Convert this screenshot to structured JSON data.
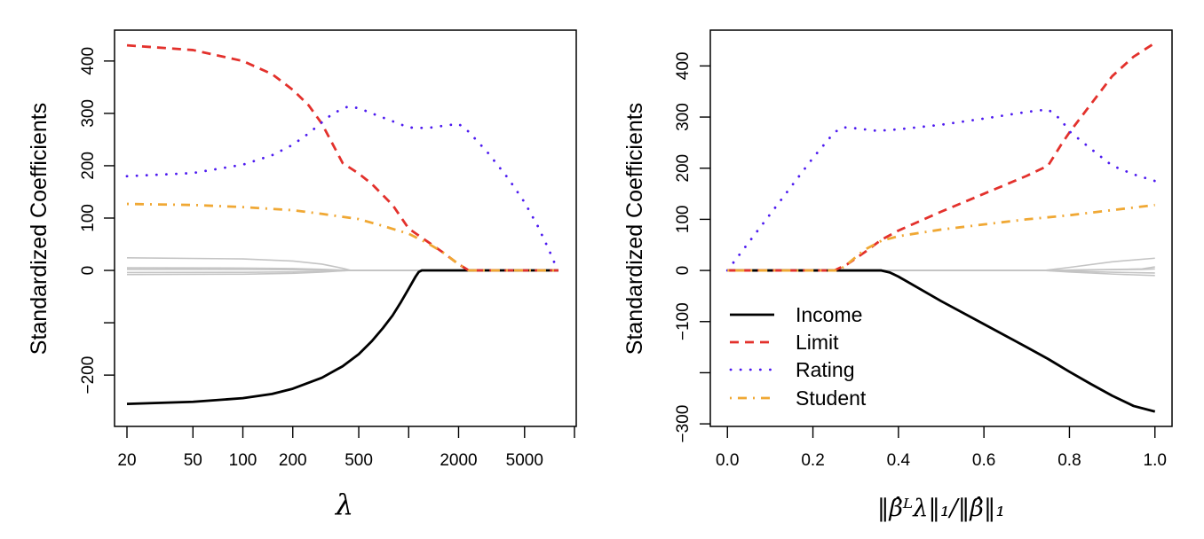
{
  "colors": {
    "Income": "#000000",
    "Limit": "#e3312c",
    "Rating": "#4d1af0",
    "Student": "#f0a834",
    "other": "#c4c4c4"
  },
  "chart_data": [
    {
      "type": "line",
      "panel": "left",
      "xlabel": "λ",
      "ylabel": "Standardized Coefficients",
      "xscale": "log",
      "xlim": [
        20,
        10000
      ],
      "ylim": [
        -298,
        459
      ],
      "xticks": [
        20,
        50,
        100,
        200,
        500,
        1000,
        2000,
        5000,
        10000
      ],
      "xtick_labels": [
        "20",
        "50",
        "100",
        "200",
        "500",
        "",
        "2000",
        "5000",
        ""
      ],
      "yticks": [
        -200,
        -100,
        0,
        100,
        200,
        300,
        400
      ],
      "ytick_labels": [
        "−200",
        "",
        "0",
        "100",
        "200",
        "300",
        "400"
      ],
      "grid": false,
      "series": [
        {
          "name": "Income",
          "style": "solid",
          "x": [
            20,
            50,
            100,
            150,
            200,
            300,
            400,
            500,
            600,
            700,
            800,
            900,
            1000,
            1100,
            1150,
            1200,
            8000
          ],
          "y": [
            -255,
            -251,
            -244,
            -236,
            -226,
            -205,
            -183,
            -160,
            -135,
            -110,
            -86,
            -60,
            -35,
            -12,
            -3,
            0,
            0
          ]
        },
        {
          "name": "Limit",
          "style": "dashed",
          "x": [
            20,
            50,
            100,
            150,
            200,
            250,
            300,
            400,
            500,
            600,
            800,
            1000,
            1300,
            1600,
            2000,
            2300,
            8000
          ],
          "y": [
            430,
            421,
            400,
            375,
            345,
            315,
            280,
            205,
            185,
            165,
            125,
            80,
            55,
            35,
            12,
            0,
            0
          ]
        },
        {
          "name": "Rating",
          "style": "dotted",
          "x": [
            20,
            50,
            100,
            150,
            200,
            250,
            300,
            350,
            430,
            500,
            600,
            800,
            1000,
            1300,
            1600,
            2000,
            2300,
            3000,
            4000,
            5000,
            6000,
            7000,
            7800,
            8000
          ],
          "y": [
            180,
            186,
            202,
            220,
            240,
            262,
            283,
            300,
            313,
            310,
            300,
            285,
            273,
            272,
            276,
            280,
            265,
            225,
            175,
            130,
            85,
            40,
            5,
            0
          ]
        },
        {
          "name": "Student",
          "style": "dotdash",
          "x": [
            20,
            50,
            100,
            200,
            300,
            500,
            700,
            1000,
            1300,
            1600,
            2000,
            2300,
            8000
          ],
          "y": [
            127,
            125,
            121,
            115,
            108,
            98,
            85,
            70,
            52,
            35,
            12,
            0,
            0
          ]
        },
        {
          "name": "other-1",
          "style": "thin",
          "x": [
            20,
            100,
            200,
            300,
            400,
            450,
            8000
          ],
          "y": [
            24,
            22,
            18,
            12,
            4,
            0,
            0
          ]
        },
        {
          "name": "other-2",
          "style": "thin",
          "x": [
            20,
            100,
            200,
            300,
            400,
            450,
            8000
          ],
          "y": [
            5,
            4.5,
            3.5,
            2,
            0.6,
            0,
            0
          ]
        },
        {
          "name": "other-3",
          "style": "thin",
          "x": [
            20,
            100,
            200,
            300,
            400,
            450,
            8000
          ],
          "y": [
            2,
            1.8,
            1.4,
            0.8,
            0.2,
            0,
            0
          ]
        },
        {
          "name": "other-4",
          "style": "thin",
          "x": [
            20,
            100,
            200,
            300,
            400,
            450,
            8000
          ],
          "y": [
            -4,
            -3.6,
            -2.8,
            -1.6,
            -0.4,
            0,
            0
          ]
        },
        {
          "name": "other-5",
          "style": "thin",
          "x": [
            20,
            100,
            200,
            300,
            400,
            450,
            8000
          ],
          "y": [
            -8,
            -7.2,
            -5.6,
            -3.2,
            -0.8,
            0,
            0
          ]
        }
      ]
    },
    {
      "type": "line",
      "panel": "right",
      "xlabel": "‖β̂ᴸλ‖₁/‖β̂‖₁",
      "ylabel": "Standardized Coefficients",
      "xscale": "linear",
      "xlim": [
        -0.04,
        1.04
      ],
      "ylim": [
        -305,
        470
      ],
      "xticks": [
        0.0,
        0.2,
        0.4,
        0.6,
        0.8,
        1.0
      ],
      "xtick_labels": [
        "0.0",
        "0.2",
        "0.4",
        "0.6",
        "0.8",
        "1.0"
      ],
      "yticks": [
        -300,
        -200,
        -100,
        0,
        100,
        200,
        300,
        400
      ],
      "ytick_labels": [
        "−300",
        "",
        "−100",
        "0",
        "100",
        "200",
        "300",
        "400"
      ],
      "grid": false,
      "legend": {
        "position": "bottom-left",
        "entries": [
          "Income",
          "Limit",
          "Rating",
          "Student"
        ]
      },
      "series": [
        {
          "name": "Income",
          "style": "solid",
          "x": [
            0,
            0.36,
            0.38,
            0.4,
            0.5,
            0.6,
            0.7,
            0.75,
            0.8,
            0.85,
            0.9,
            0.95,
            1.0
          ],
          "y": [
            0,
            0,
            -4,
            -12,
            -60,
            -105,
            -150,
            -173,
            -198,
            -222,
            -245,
            -265,
            -276
          ]
        },
        {
          "name": "Limit",
          "style": "dashed",
          "x": [
            0,
            0.25,
            0.28,
            0.32,
            0.36,
            0.4,
            0.5,
            0.6,
            0.7,
            0.75,
            0.78,
            0.8,
            0.85,
            0.9,
            0.95,
            1.0
          ],
          "y": [
            0,
            0,
            12,
            35,
            60,
            78,
            115,
            150,
            185,
            205,
            245,
            270,
            325,
            380,
            418,
            445
          ]
        },
        {
          "name": "Rating",
          "style": "dotted",
          "x": [
            0,
            0.05,
            0.1,
            0.15,
            0.2,
            0.25,
            0.27,
            0.3,
            0.35,
            0.4,
            0.5,
            0.6,
            0.7,
            0.75,
            0.78,
            0.8,
            0.85,
            0.9,
            0.95,
            1.0
          ],
          "y": [
            0,
            55,
            110,
            165,
            220,
            270,
            280,
            278,
            273,
            276,
            285,
            297,
            310,
            315,
            295,
            272,
            238,
            205,
            188,
            175
          ]
        },
        {
          "name": "Student",
          "style": "dotdash",
          "x": [
            0,
            0.26,
            0.28,
            0.32,
            0.36,
            0.4,
            0.5,
            0.6,
            0.7,
            0.8,
            0.9,
            1.0
          ],
          "y": [
            0,
            0,
            12,
            40,
            58,
            67,
            80,
            90,
            100,
            108,
            118,
            128
          ]
        },
        {
          "name": "other-1",
          "style": "thin",
          "x": [
            0,
            0.74,
            0.8,
            0.9,
            1.0
          ],
          "y": [
            0,
            0,
            6,
            17,
            24
          ]
        },
        {
          "name": "other-2",
          "style": "thin",
          "x": [
            0,
            0.74,
            0.8,
            0.9,
            0.97,
            1.0
          ],
          "y": [
            0,
            0,
            1,
            2,
            3,
            7
          ]
        },
        {
          "name": "other-3",
          "style": "thin",
          "x": [
            0,
            0.74,
            0.8,
            0.9,
            0.97,
            1.0
          ],
          "y": [
            0,
            0,
            0.5,
            1.5,
            2,
            3
          ]
        },
        {
          "name": "other-4",
          "style": "thin",
          "x": [
            0,
            0.74,
            0.8,
            0.9,
            1.0
          ],
          "y": [
            0,
            0,
            -1.5,
            -3.5,
            -5
          ]
        },
        {
          "name": "other-5",
          "style": "thin",
          "x": [
            0,
            0.74,
            0.8,
            0.9,
            1.0
          ],
          "y": [
            0,
            0,
            -3,
            -7,
            -10
          ]
        }
      ]
    }
  ]
}
